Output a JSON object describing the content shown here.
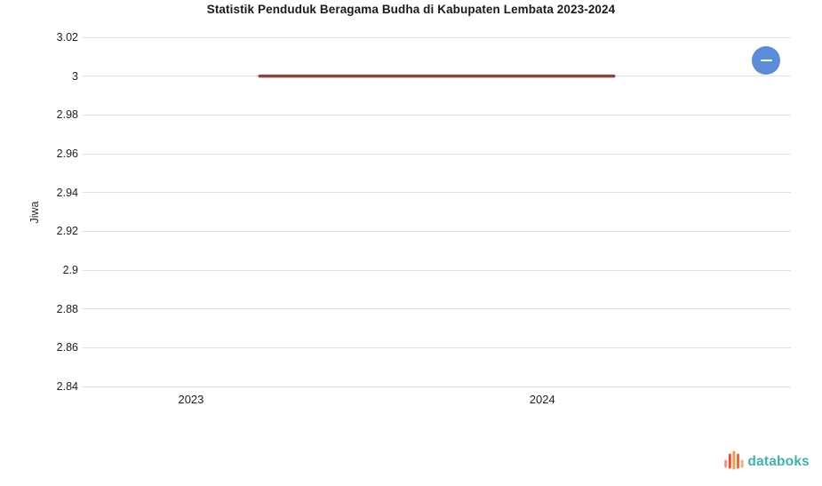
{
  "title": "Statistik Penduduk Beragama Budha di Kabupaten Lembata 2023-2024",
  "chart_data": {
    "type": "line",
    "title": "Statistik Penduduk Beragama Budha di Kabupaten Lembata 2023-2024",
    "categories": [
      "2023",
      "2024"
    ],
    "series": [
      {
        "name": "Jiwa",
        "values": [
          3,
          3
        ],
        "color": "#8a453e"
      }
    ],
    "xlabel": "",
    "ylabel": "Jiwa",
    "ylim": [
      2.84,
      3.02
    ],
    "ytick_labels": [
      "3.02",
      "3",
      "2.98",
      "2.96",
      "2.94",
      "2.92",
      "2.9",
      "2.88",
      "2.86",
      "2.84"
    ],
    "grid": true,
    "legend_position": "none"
  },
  "controls": {
    "zoom_out_icon": "minus"
  },
  "branding": {
    "logo_text": "databoks",
    "logo_text_color": "#40b0ab",
    "logo_bar_colors": [
      "#f0917b",
      "#e4503f",
      "#f09d43",
      "#ea6a47",
      "#f3b06a"
    ]
  },
  "colors": {
    "series_line": "#8a453e",
    "gridline": "#e0e0e0",
    "zoom_button": "#5b8cd7",
    "text": "#1f1f1f"
  }
}
